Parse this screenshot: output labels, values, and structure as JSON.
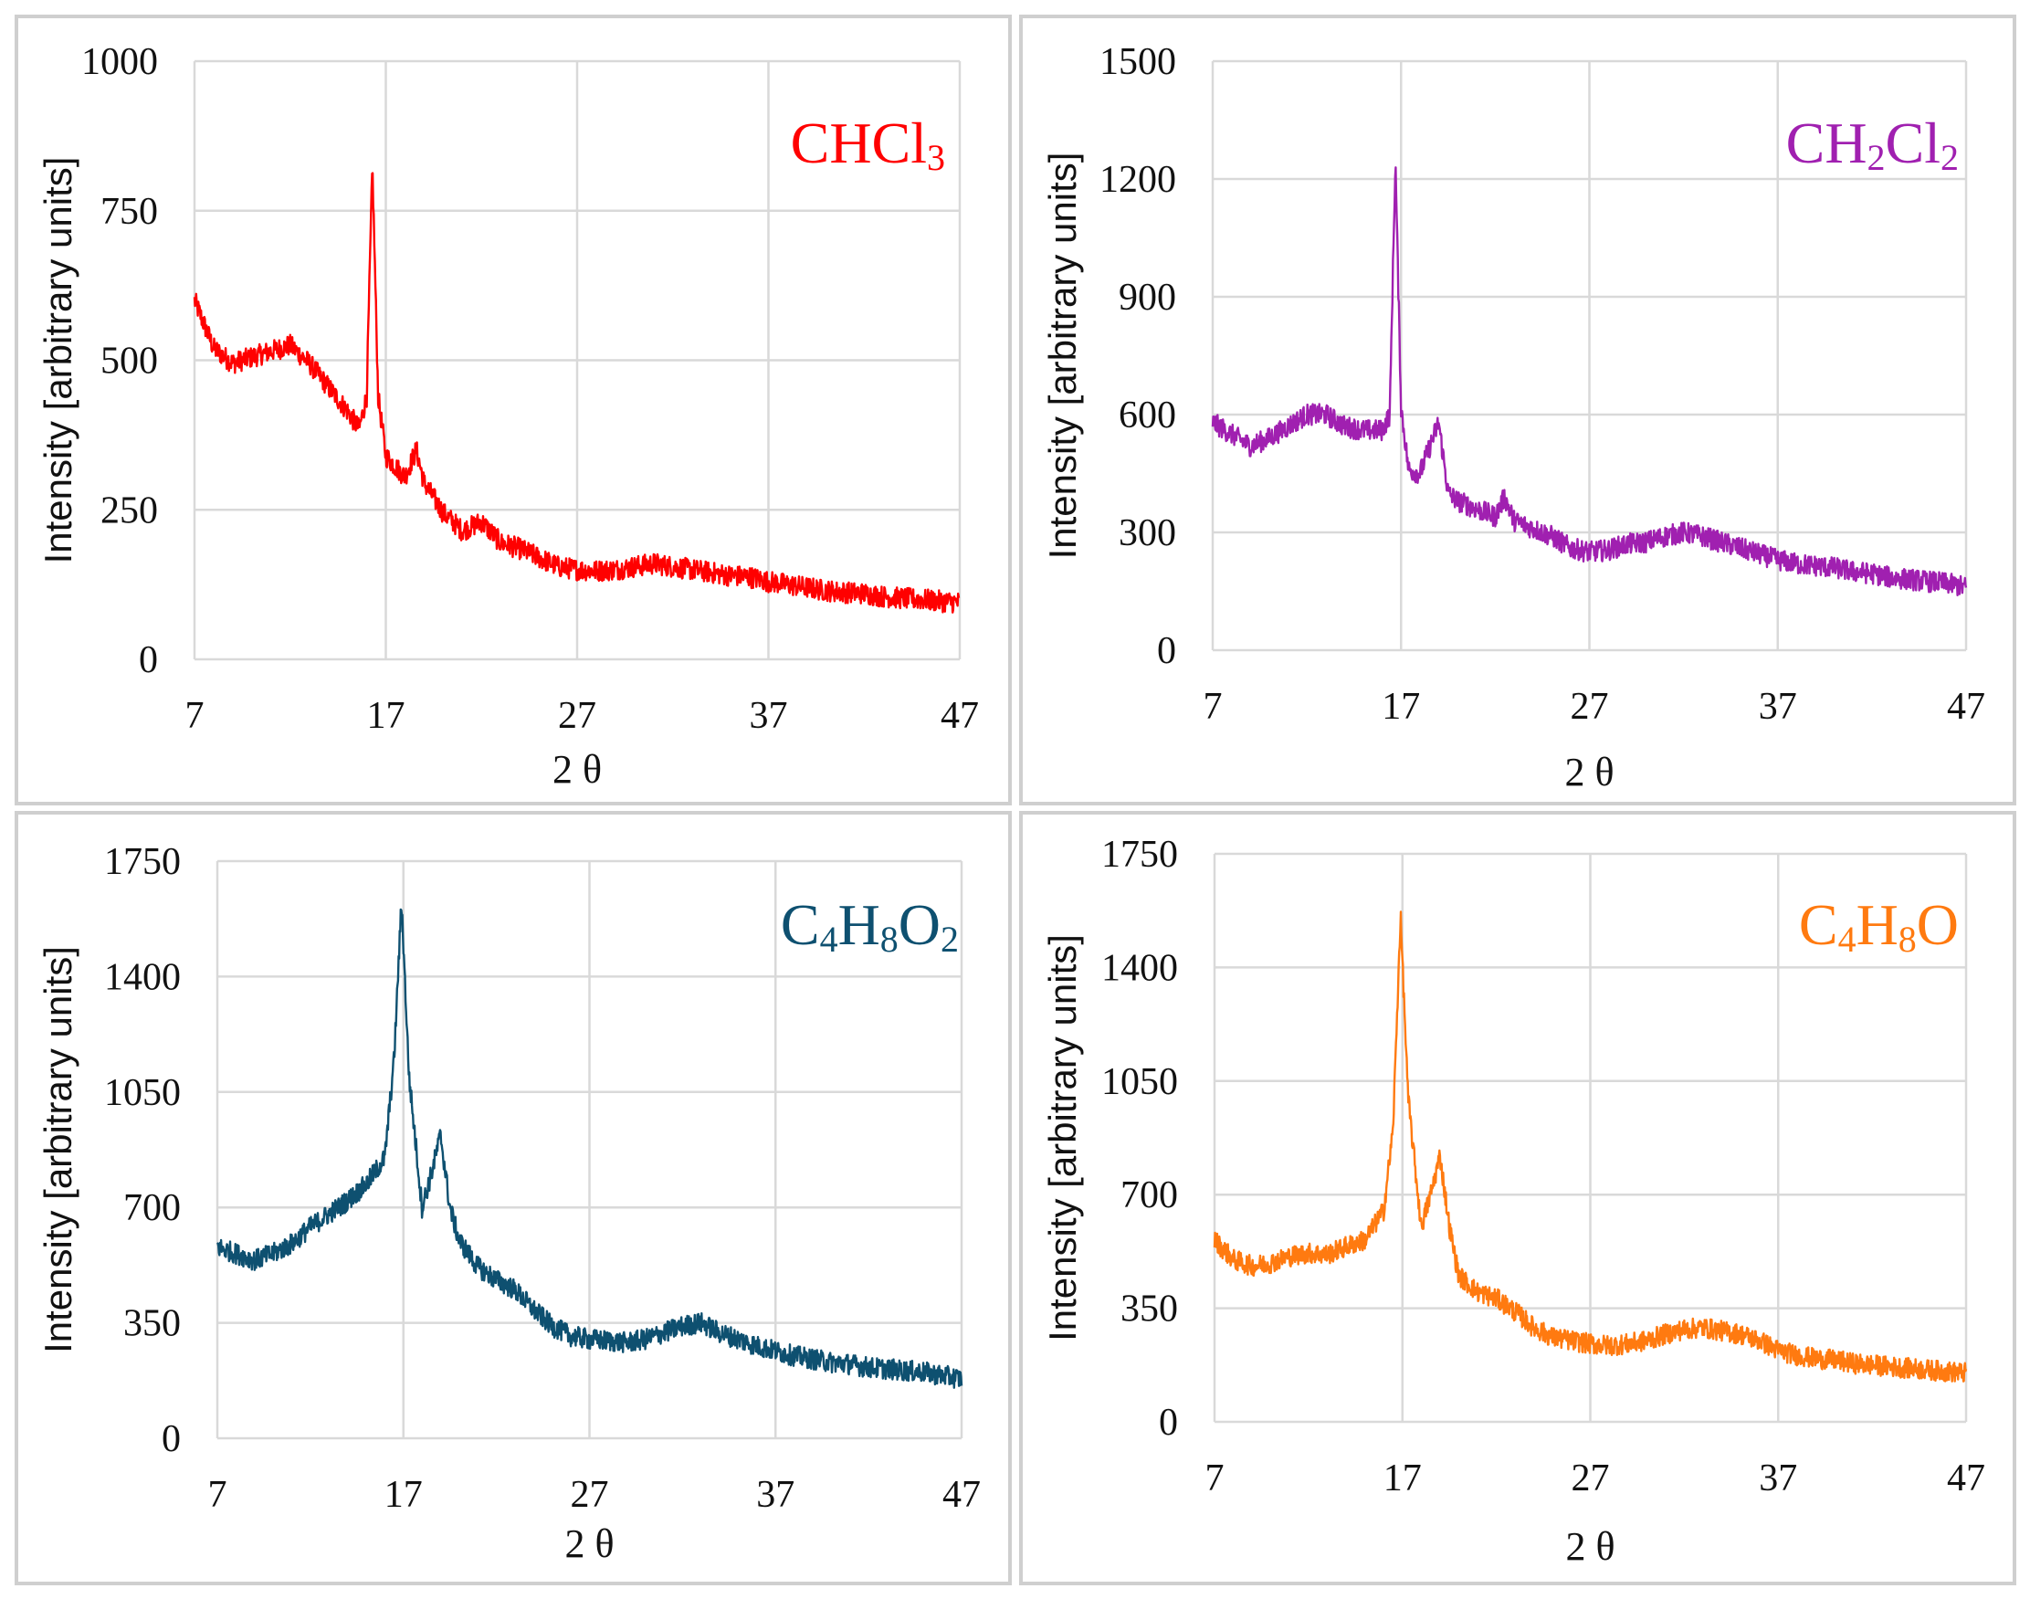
{
  "chart_data": [
    {
      "type": "line",
      "title": "CHCl3",
      "title_parts": [
        {
          "t": "CHCl",
          "sub": false
        },
        {
          "t": "3",
          "sub": true
        }
      ],
      "color": "#ff0000",
      "xlabel": "2 θ",
      "ylabel": "Intensity [arbitrary units]",
      "xlim": [
        7,
        47
      ],
      "ylim": [
        0,
        1000
      ],
      "xticks": [
        7,
        17,
        27,
        37,
        47
      ],
      "yticks": [
        0,
        250,
        500,
        750,
        1000
      ],
      "grid": true,
      "series": [
        {
          "name": "CHCl3",
          "x": [
            7,
            8,
            9,
            10,
            11,
            12,
            13,
            14,
            15,
            15.6,
            16,
            16.3,
            16.6,
            17,
            18,
            18.6,
            19,
            20,
            21,
            22,
            23,
            24,
            25,
            26,
            27,
            28,
            29,
            30,
            31,
            32,
            33,
            34,
            35,
            36,
            37,
            38,
            39,
            40,
            41,
            42,
            43,
            44,
            45,
            46,
            47
          ],
          "y": [
            600,
            520,
            495,
            505,
            515,
            525,
            495,
            455,
            415,
            385,
            440,
            825,
            440,
            340,
            305,
            350,
            295,
            245,
            215,
            230,
            195,
            185,
            170,
            155,
            150,
            148,
            150,
            155,
            160,
            155,
            150,
            145,
            140,
            138,
            130,
            125,
            120,
            115,
            112,
            110,
            105,
            102,
            100,
            97,
            95
          ]
        }
      ]
    },
    {
      "type": "line",
      "title": "CH2Cl2",
      "title_parts": [
        {
          "t": "CH",
          "sub": false
        },
        {
          "t": "2",
          "sub": true
        },
        {
          "t": "Cl",
          "sub": false
        },
        {
          "t": "2",
          "sub": true
        }
      ],
      "color": "#a020b0",
      "xlabel": "2 θ",
      "ylabel": "Intensity [arbitrary units]",
      "xlim": [
        7,
        47
      ],
      "ylim": [
        0,
        1500
      ],
      "xticks": [
        7,
        17,
        27,
        37,
        47
      ],
      "yticks": [
        0,
        300,
        600,
        900,
        1200,
        1500
      ],
      "grid": true,
      "series": [
        {
          "name": "CH2Cl2",
          "x": [
            7,
            8,
            9,
            10,
            11,
            12,
            13,
            14,
            15,
            16,
            16.4,
            16.7,
            17,
            17.4,
            18,
            19,
            19.5,
            20,
            21,
            22,
            22.5,
            23,
            24,
            25,
            26,
            27,
            28,
            29,
            30,
            31,
            32,
            33,
            34,
            35,
            36,
            37,
            38,
            39,
            40,
            41,
            42,
            43,
            44,
            45,
            46,
            47
          ],
          "y": [
            580,
            550,
            520,
            540,
            570,
            600,
            600,
            570,
            560,
            560,
            600,
            1250,
            620,
            460,
            450,
            580,
            400,
            380,
            360,
            340,
            390,
            330,
            310,
            290,
            260,
            250,
            255,
            270,
            275,
            290,
            300,
            290,
            275,
            260,
            245,
            230,
            220,
            215,
            210,
            200,
            195,
            185,
            180,
            175,
            170,
            160
          ]
        }
      ]
    },
    {
      "type": "line",
      "title": "C4H8O2",
      "title_parts": [
        {
          "t": "C",
          "sub": false
        },
        {
          "t": "4",
          "sub": true
        },
        {
          "t": "H",
          "sub": false
        },
        {
          "t": "8",
          "sub": true
        },
        {
          "t": "O",
          "sub": false
        },
        {
          "t": "2",
          "sub": true
        }
      ],
      "color": "#0e5070",
      "xlabel": "2 θ",
      "ylabel": "Intensity [arbitrary units]",
      "xlim": [
        7,
        47
      ],
      "ylim": [
        0,
        1750
      ],
      "xticks": [
        7,
        17,
        27,
        37,
        47
      ],
      "yticks": [
        0,
        350,
        700,
        1050,
        1400,
        1750
      ],
      "grid": true,
      "series": [
        {
          "name": "C4H8O2",
          "x": [
            7,
            8,
            9,
            10,
            11,
            12,
            13,
            14,
            15,
            16,
            16.5,
            16.9,
            17.3,
            18,
            18.5,
            19,
            19.5,
            20,
            21,
            22,
            23,
            24,
            25,
            26,
            27,
            28,
            29,
            30,
            31,
            32,
            33,
            34,
            35,
            36,
            37,
            38,
            39,
            40,
            41,
            42,
            43,
            44,
            45,
            46,
            47
          ],
          "y": [
            580,
            560,
            540,
            560,
            590,
            640,
            680,
            720,
            770,
            850,
            1150,
            1630,
            1100,
            700,
            800,
            920,
            700,
            600,
            520,
            480,
            450,
            390,
            340,
            310,
            300,
            295,
            290,
            300,
            320,
            340,
            350,
            320,
            300,
            280,
            265,
            250,
            240,
            230,
            225,
            215,
            210,
            205,
            200,
            190,
            180
          ]
        }
      ]
    },
    {
      "type": "line",
      "title": "C4H8O",
      "title_parts": [
        {
          "t": "C",
          "sub": false
        },
        {
          "t": "4",
          "sub": true
        },
        {
          "t": "H",
          "sub": false
        },
        {
          "t": "8",
          "sub": true
        },
        {
          "t": "O",
          "sub": false
        }
      ],
      "color": "#ff7a10",
      "xlabel": "2 θ",
      "ylabel": "Intensity [arbitrary units]",
      "xlim": [
        7,
        47
      ],
      "ylim": [
        0,
        1750
      ],
      "xticks": [
        7,
        17,
        27,
        37,
        47
      ],
      "yticks": [
        0,
        350,
        700,
        1050,
        1400,
        1750
      ],
      "grid": true,
      "series": [
        {
          "name": "C4H8O",
          "x": [
            7,
            8,
            9,
            10,
            11,
            12,
            13,
            14,
            15,
            16,
            16.5,
            16.9,
            17.3,
            18,
            18.5,
            19,
            19.5,
            20,
            21,
            22,
            23,
            24,
            25,
            26,
            27,
            28,
            29,
            30,
            31,
            32,
            33,
            34,
            35,
            36,
            37,
            38,
            39,
            40,
            41,
            42,
            43,
            44,
            45,
            46,
            47
          ],
          "y": [
            560,
            500,
            480,
            490,
            510,
            520,
            515,
            540,
            560,
            650,
            900,
            1560,
            1000,
            600,
            700,
            820,
            600,
            450,
            400,
            380,
            340,
            290,
            260,
            250,
            240,
            235,
            240,
            250,
            270,
            285,
            290,
            280,
            270,
            250,
            220,
            205,
            195,
            190,
            180,
            175,
            170,
            165,
            160,
            155,
            150
          ]
        }
      ]
    }
  ]
}
